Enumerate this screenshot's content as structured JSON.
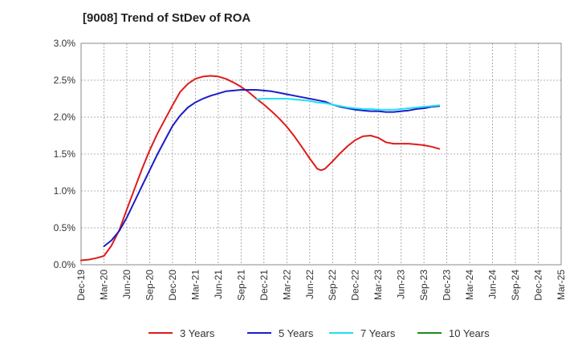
{
  "chart_data": {
    "type": "line",
    "title": "[9008]  Trend of StDev of ROA",
    "xlabel": "",
    "ylabel": "",
    "categories": [
      "Dec-19",
      "Mar-20",
      "Jun-20",
      "Sep-20",
      "Dec-20",
      "Mar-21",
      "Jun-21",
      "Sep-21",
      "Dec-21",
      "Mar-22",
      "Jun-22",
      "Sep-22",
      "Dec-22",
      "Mar-23",
      "Jun-23",
      "Sep-23",
      "Dec-23",
      "Mar-24",
      "Jun-24",
      "Sep-24",
      "Dec-24",
      "Mar-25"
    ],
    "y_ticks": [
      "0.0%",
      "0.5%",
      "1.0%",
      "1.5%",
      "2.0%",
      "2.5%",
      "3.0%"
    ],
    "ylim": [
      0,
      3.0
    ],
    "y_unit": "%",
    "grid": true,
    "legend_position": "bottom",
    "series": [
      {
        "name": "3 Years",
        "color": "#dd1c1c",
        "points": [
          [
            0,
            0.06
          ],
          [
            0.33,
            0.07
          ],
          [
            0.67,
            0.09
          ],
          [
            1.0,
            0.12
          ],
          [
            1.33,
            0.26
          ],
          [
            1.67,
            0.47
          ],
          [
            2.0,
            0.75
          ],
          [
            2.33,
            1.02
          ],
          [
            2.67,
            1.3
          ],
          [
            3.0,
            1.55
          ],
          [
            3.33,
            1.77
          ],
          [
            3.67,
            1.97
          ],
          [
            4.0,
            2.16
          ],
          [
            4.33,
            2.34
          ],
          [
            4.67,
            2.45
          ],
          [
            5.0,
            2.52
          ],
          [
            5.33,
            2.55
          ],
          [
            5.67,
            2.56
          ],
          [
            6.0,
            2.55
          ],
          [
            6.33,
            2.52
          ],
          [
            6.67,
            2.47
          ],
          [
            7.0,
            2.41
          ],
          [
            7.33,
            2.34
          ],
          [
            7.67,
            2.25
          ],
          [
            8.0,
            2.17
          ],
          [
            8.33,
            2.08
          ],
          [
            8.67,
            1.98
          ],
          [
            9.0,
            1.87
          ],
          [
            9.33,
            1.74
          ],
          [
            9.67,
            1.59
          ],
          [
            10.0,
            1.44
          ],
          [
            10.33,
            1.3
          ],
          [
            10.5,
            1.28
          ],
          [
            10.67,
            1.3
          ],
          [
            11.0,
            1.4
          ],
          [
            11.33,
            1.51
          ],
          [
            11.67,
            1.61
          ],
          [
            12.0,
            1.69
          ],
          [
            12.33,
            1.74
          ],
          [
            12.67,
            1.75
          ],
          [
            13.0,
            1.72
          ],
          [
            13.33,
            1.66
          ],
          [
            13.67,
            1.64
          ],
          [
            14.0,
            1.64
          ],
          [
            14.33,
            1.64
          ],
          [
            14.67,
            1.63
          ],
          [
            15.0,
            1.62
          ],
          [
            15.33,
            1.6
          ],
          [
            15.67,
            1.57
          ]
        ]
      },
      {
        "name": "5 Years",
        "color": "#1c1cc8",
        "points": [
          [
            1.0,
            0.25
          ],
          [
            1.33,
            0.33
          ],
          [
            1.67,
            0.46
          ],
          [
            2.0,
            0.64
          ],
          [
            2.33,
            0.85
          ],
          [
            2.67,
            1.07
          ],
          [
            3.0,
            1.28
          ],
          [
            3.33,
            1.49
          ],
          [
            3.67,
            1.69
          ],
          [
            4.0,
            1.88
          ],
          [
            4.33,
            2.02
          ],
          [
            4.67,
            2.13
          ],
          [
            5.0,
            2.2
          ],
          [
            5.33,
            2.25
          ],
          [
            5.67,
            2.29
          ],
          [
            6.0,
            2.32
          ],
          [
            6.33,
            2.35
          ],
          [
            6.67,
            2.36
          ],
          [
            7.0,
            2.37
          ],
          [
            7.33,
            2.37
          ],
          [
            7.67,
            2.37
          ],
          [
            8.0,
            2.36
          ],
          [
            8.33,
            2.35
          ],
          [
            8.67,
            2.33
          ],
          [
            9.0,
            2.31
          ],
          [
            9.33,
            2.29
          ],
          [
            9.67,
            2.27
          ],
          [
            10.0,
            2.25
          ],
          [
            10.33,
            2.23
          ],
          [
            10.67,
            2.21
          ],
          [
            11.0,
            2.17
          ],
          [
            11.33,
            2.14
          ],
          [
            11.67,
            2.12
          ],
          [
            12.0,
            2.1
          ],
          [
            12.33,
            2.09
          ],
          [
            12.67,
            2.08
          ],
          [
            13.0,
            2.08
          ],
          [
            13.33,
            2.07
          ],
          [
            13.67,
            2.07
          ],
          [
            14.0,
            2.08
          ],
          [
            14.33,
            2.09
          ],
          [
            14.67,
            2.11
          ],
          [
            15.0,
            2.12
          ],
          [
            15.33,
            2.14
          ],
          [
            15.67,
            2.15
          ]
        ]
      },
      {
        "name": "7 Years",
        "color": "#22e0ee",
        "points": [
          [
            7.67,
            2.24
          ],
          [
            8.0,
            2.25
          ],
          [
            8.33,
            2.25
          ],
          [
            8.67,
            2.25
          ],
          [
            9.0,
            2.25
          ],
          [
            9.33,
            2.24
          ],
          [
            9.67,
            2.23
          ],
          [
            10.0,
            2.22
          ],
          [
            10.33,
            2.2
          ],
          [
            10.67,
            2.19
          ],
          [
            11.0,
            2.17
          ],
          [
            11.33,
            2.15
          ],
          [
            11.67,
            2.13
          ],
          [
            12.0,
            2.12
          ],
          [
            12.33,
            2.11
          ],
          [
            12.67,
            2.11
          ],
          [
            13.0,
            2.1
          ],
          [
            13.33,
            2.1
          ],
          [
            13.67,
            2.1
          ],
          [
            14.0,
            2.11
          ],
          [
            14.33,
            2.12
          ],
          [
            14.67,
            2.13
          ],
          [
            15.0,
            2.14
          ],
          [
            15.33,
            2.15
          ],
          [
            15.67,
            2.16
          ]
        ]
      },
      {
        "name": "10 Years",
        "color": "#1e8c1e",
        "points": []
      }
    ]
  }
}
